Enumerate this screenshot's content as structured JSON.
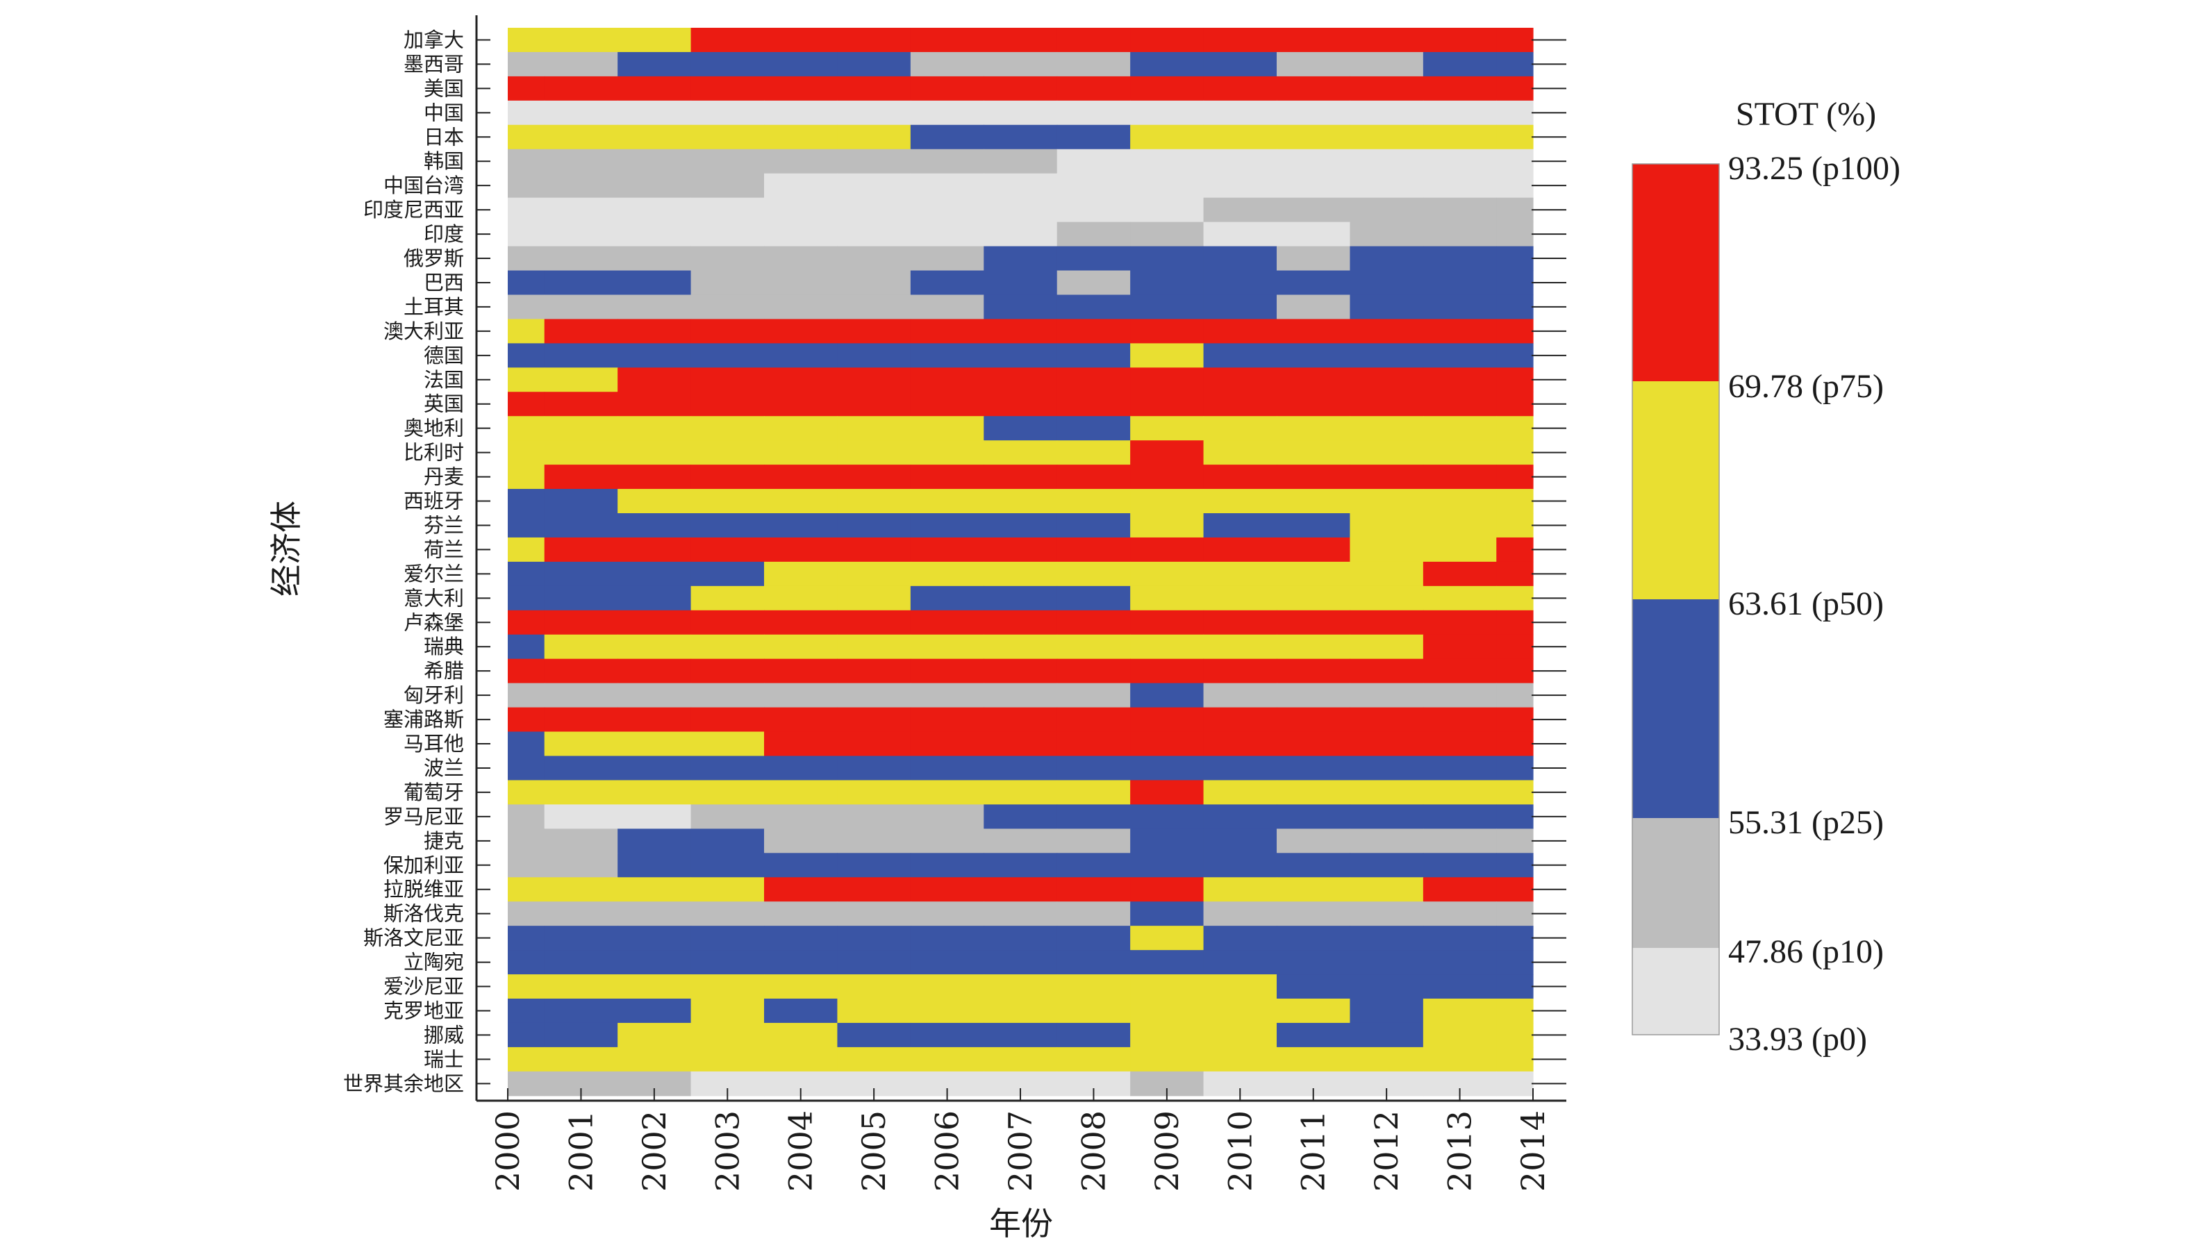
{
  "chart_data": {
    "type": "heatmap",
    "xlabel": "年份",
    "ylabel": "经济体",
    "x": [
      "2000",
      "2001",
      "2002",
      "2003",
      "2004",
      "2005",
      "2006",
      "2007",
      "2008",
      "2009",
      "2010",
      "2011",
      "2012",
      "2013",
      "2014"
    ],
    "legend": {
      "title": "STOT (%)",
      "bins": [
        {
          "class": "p0-p10",
          "color": "#e3e3e3",
          "min": 33.93,
          "max": 47.86
        },
        {
          "class": "p10-p25",
          "color": "#bdbdbd",
          "min": 47.86,
          "max": 55.31
        },
        {
          "class": "p25-p50",
          "color": "#3a55a5",
          "min": 55.31,
          "max": 63.61
        },
        {
          "class": "p50-p75",
          "color": "#e9df31",
          "min": 63.61,
          "max": 69.78
        },
        {
          "class": "p75-p100",
          "color": "#eb1b12",
          "min": 69.78,
          "max": 93.25
        }
      ],
      "labels": [
        "93.25 (p100)",
        "69.78 (p75)",
        "63.61 (p50)",
        "55.31 (p25)",
        "47.86 (p10)",
        "33.93 (p0)"
      ]
    },
    "class_codes": {
      "L": "p0-p10",
      "G": "p10-p25",
      "B": "p25-p50",
      "Y": "p50-p75",
      "R": "p75-p100"
    },
    "rows": [
      {
        "label": "加拿大",
        "classes": [
          "Y",
          "Y",
          "Y",
          "R",
          "R",
          "R",
          "R",
          "R",
          "R",
          "R",
          "R",
          "R",
          "R",
          "R",
          "R"
        ]
      },
      {
        "label": "墨西哥",
        "classes": [
          "G",
          "G",
          "B",
          "B",
          "B",
          "B",
          "G",
          "G",
          "G",
          "B",
          "B",
          "G",
          "G",
          "B",
          "B"
        ]
      },
      {
        "label": "美国",
        "classes": [
          "R",
          "R",
          "R",
          "R",
          "R",
          "R",
          "R",
          "R",
          "R",
          "R",
          "R",
          "R",
          "R",
          "R",
          "R"
        ]
      },
      {
        "label": "中国",
        "classes": [
          "L",
          "L",
          "L",
          "L",
          "L",
          "L",
          "L",
          "L",
          "L",
          "L",
          "L",
          "L",
          "L",
          "L",
          "L"
        ]
      },
      {
        "label": "日本",
        "classes": [
          "Y",
          "Y",
          "Y",
          "Y",
          "Y",
          "Y",
          "B",
          "B",
          "B",
          "Y",
          "Y",
          "Y",
          "Y",
          "Y",
          "Y"
        ]
      },
      {
        "label": "韩国",
        "classes": [
          "G",
          "G",
          "G",
          "G",
          "G",
          "G",
          "G",
          "G",
          "L",
          "L",
          "L",
          "L",
          "L",
          "L",
          "L"
        ]
      },
      {
        "label": "中国台湾",
        "classes": [
          "G",
          "G",
          "G",
          "G",
          "L",
          "L",
          "L",
          "L",
          "L",
          "L",
          "L",
          "L",
          "L",
          "L",
          "L"
        ]
      },
      {
        "label": "印度尼西亚",
        "classes": [
          "L",
          "L",
          "L",
          "L",
          "L",
          "L",
          "L",
          "L",
          "L",
          "L",
          "G",
          "G",
          "G",
          "G",
          "G"
        ]
      },
      {
        "label": "印度",
        "classes": [
          "L",
          "L",
          "L",
          "L",
          "L",
          "L",
          "L",
          "L",
          "G",
          "G",
          "L",
          "L",
          "G",
          "G",
          "G"
        ]
      },
      {
        "label": "俄罗斯",
        "classes": [
          "G",
          "G",
          "G",
          "G",
          "G",
          "G",
          "G",
          "B",
          "B",
          "B",
          "B",
          "G",
          "B",
          "B",
          "B"
        ]
      },
      {
        "label": "巴西",
        "classes": [
          "B",
          "B",
          "B",
          "G",
          "G",
          "G",
          "B",
          "B",
          "G",
          "B",
          "B",
          "B",
          "B",
          "B",
          "B"
        ]
      },
      {
        "label": "土耳其",
        "classes": [
          "G",
          "G",
          "G",
          "G",
          "G",
          "G",
          "G",
          "B",
          "B",
          "B",
          "B",
          "G",
          "B",
          "B",
          "B"
        ]
      },
      {
        "label": "澳大利亚",
        "classes": [
          "Y",
          "R",
          "R",
          "R",
          "R",
          "R",
          "R",
          "R",
          "R",
          "R",
          "R",
          "R",
          "R",
          "R",
          "R"
        ]
      },
      {
        "label": "德国",
        "classes": [
          "B",
          "B",
          "B",
          "B",
          "B",
          "B",
          "B",
          "B",
          "B",
          "Y",
          "B",
          "B",
          "B",
          "B",
          "B"
        ]
      },
      {
        "label": "法国",
        "classes": [
          "Y",
          "Y",
          "R",
          "R",
          "R",
          "R",
          "R",
          "R",
          "R",
          "R",
          "R",
          "R",
          "R",
          "R",
          "R"
        ]
      },
      {
        "label": "英国",
        "classes": [
          "R",
          "R",
          "R",
          "R",
          "R",
          "R",
          "R",
          "R",
          "R",
          "R",
          "R",
          "R",
          "R",
          "R",
          "R"
        ]
      },
      {
        "label": "奥地利",
        "classes": [
          "Y",
          "Y",
          "Y",
          "Y",
          "Y",
          "Y",
          "Y",
          "B",
          "B",
          "Y",
          "Y",
          "Y",
          "Y",
          "Y",
          "Y"
        ]
      },
      {
        "label": "比利时",
        "classes": [
          "Y",
          "Y",
          "Y",
          "Y",
          "Y",
          "Y",
          "Y",
          "Y",
          "Y",
          "R",
          "Y",
          "Y",
          "Y",
          "Y",
          "Y"
        ]
      },
      {
        "label": "丹麦",
        "classes": [
          "Y",
          "R",
          "R",
          "R",
          "R",
          "R",
          "R",
          "R",
          "R",
          "R",
          "R",
          "R",
          "R",
          "R",
          "R"
        ]
      },
      {
        "label": "西班牙",
        "classes": [
          "B",
          "B",
          "Y",
          "Y",
          "Y",
          "Y",
          "Y",
          "Y",
          "Y",
          "Y",
          "Y",
          "Y",
          "Y",
          "Y",
          "Y"
        ]
      },
      {
        "label": "芬兰",
        "classes": [
          "B",
          "B",
          "B",
          "B",
          "B",
          "B",
          "B",
          "B",
          "B",
          "Y",
          "B",
          "B",
          "Y",
          "Y",
          "Y"
        ]
      },
      {
        "label": "荷兰",
        "classes": [
          "Y",
          "R",
          "R",
          "R",
          "R",
          "R",
          "R",
          "R",
          "R",
          "R",
          "R",
          "R",
          "Y",
          "Y",
          "R"
        ]
      },
      {
        "label": "爱尔兰",
        "classes": [
          "B",
          "B",
          "B",
          "B",
          "Y",
          "Y",
          "Y",
          "Y",
          "Y",
          "Y",
          "Y",
          "Y",
          "Y",
          "R",
          "R"
        ]
      },
      {
        "label": "意大利",
        "classes": [
          "B",
          "B",
          "B",
          "Y",
          "Y",
          "Y",
          "B",
          "B",
          "B",
          "Y",
          "Y",
          "Y",
          "Y",
          "Y",
          "Y"
        ]
      },
      {
        "label": "卢森堡",
        "classes": [
          "R",
          "R",
          "R",
          "R",
          "R",
          "R",
          "R",
          "R",
          "R",
          "R",
          "R",
          "R",
          "R",
          "R",
          "R"
        ]
      },
      {
        "label": "瑞典",
        "classes": [
          "B",
          "Y",
          "Y",
          "Y",
          "Y",
          "Y",
          "Y",
          "Y",
          "Y",
          "Y",
          "Y",
          "Y",
          "Y",
          "R",
          "R"
        ]
      },
      {
        "label": "希腊",
        "classes": [
          "R",
          "R",
          "R",
          "R",
          "R",
          "R",
          "R",
          "R",
          "R",
          "R",
          "R",
          "R",
          "R",
          "R",
          "R"
        ]
      },
      {
        "label": "匈牙利",
        "classes": [
          "G",
          "G",
          "G",
          "G",
          "G",
          "G",
          "G",
          "G",
          "G",
          "B",
          "G",
          "G",
          "G",
          "G",
          "G"
        ]
      },
      {
        "label": "塞浦路斯",
        "classes": [
          "R",
          "R",
          "R",
          "R",
          "R",
          "R",
          "R",
          "R",
          "R",
          "R",
          "R",
          "R",
          "R",
          "R",
          "R"
        ]
      },
      {
        "label": "马耳他",
        "classes": [
          "B",
          "Y",
          "Y",
          "Y",
          "R",
          "R",
          "R",
          "R",
          "R",
          "R",
          "R",
          "R",
          "R",
          "R",
          "R"
        ]
      },
      {
        "label": "波兰",
        "classes": [
          "B",
          "B",
          "B",
          "B",
          "B",
          "B",
          "B",
          "B",
          "B",
          "B",
          "B",
          "B",
          "B",
          "B",
          "B"
        ]
      },
      {
        "label": "葡萄牙",
        "classes": [
          "Y",
          "Y",
          "Y",
          "Y",
          "Y",
          "Y",
          "Y",
          "Y",
          "Y",
          "R",
          "Y",
          "Y",
          "Y",
          "Y",
          "Y"
        ]
      },
      {
        "label": "罗马尼亚",
        "classes": [
          "G",
          "L",
          "L",
          "G",
          "G",
          "G",
          "G",
          "B",
          "B",
          "B",
          "B",
          "B",
          "B",
          "B",
          "B"
        ]
      },
      {
        "label": "捷克",
        "classes": [
          "G",
          "G",
          "B",
          "B",
          "G",
          "G",
          "G",
          "G",
          "G",
          "B",
          "B",
          "G",
          "G",
          "G",
          "G"
        ]
      },
      {
        "label": "保加利亚",
        "classes": [
          "G",
          "G",
          "B",
          "B",
          "B",
          "B",
          "B",
          "B",
          "B",
          "B",
          "B",
          "B",
          "B",
          "B",
          "B"
        ]
      },
      {
        "label": "拉脱维亚",
        "classes": [
          "Y",
          "Y",
          "Y",
          "Y",
          "R",
          "R",
          "R",
          "R",
          "R",
          "R",
          "Y",
          "Y",
          "Y",
          "R",
          "R"
        ]
      },
      {
        "label": "斯洛伐克",
        "classes": [
          "G",
          "G",
          "G",
          "G",
          "G",
          "G",
          "G",
          "G",
          "G",
          "B",
          "G",
          "G",
          "G",
          "G",
          "G"
        ]
      },
      {
        "label": "斯洛文尼亚",
        "classes": [
          "B",
          "B",
          "B",
          "B",
          "B",
          "B",
          "B",
          "B",
          "B",
          "Y",
          "B",
          "B",
          "B",
          "B",
          "B"
        ]
      },
      {
        "label": "立陶宛",
        "classes": [
          "B",
          "B",
          "B",
          "B",
          "B",
          "B",
          "B",
          "B",
          "B",
          "B",
          "B",
          "B",
          "B",
          "B",
          "B"
        ]
      },
      {
        "label": "爱沙尼亚",
        "classes": [
          "Y",
          "Y",
          "Y",
          "Y",
          "Y",
          "Y",
          "Y",
          "Y",
          "Y",
          "Y",
          "Y",
          "B",
          "B",
          "B",
          "B"
        ]
      },
      {
        "label": "克罗地亚",
        "classes": [
          "B",
          "B",
          "B",
          "Y",
          "B",
          "Y",
          "Y",
          "Y",
          "Y",
          "Y",
          "Y",
          "Y",
          "B",
          "Y",
          "Y"
        ]
      },
      {
        "label": "挪威",
        "classes": [
          "B",
          "B",
          "Y",
          "Y",
          "Y",
          "B",
          "B",
          "B",
          "B",
          "Y",
          "Y",
          "B",
          "B",
          "Y",
          "Y"
        ]
      },
      {
        "label": "瑞士",
        "classes": [
          "Y",
          "Y",
          "Y",
          "Y",
          "Y",
          "Y",
          "Y",
          "Y",
          "Y",
          "Y",
          "Y",
          "Y",
          "Y",
          "Y",
          "Y"
        ]
      },
      {
        "label": "世界其余地区",
        "classes": [
          "G",
          "G",
          "G",
          "L",
          "L",
          "L",
          "L",
          "L",
          "L",
          "G",
          "L",
          "L",
          "L",
          "L",
          "L"
        ]
      }
    ]
  }
}
